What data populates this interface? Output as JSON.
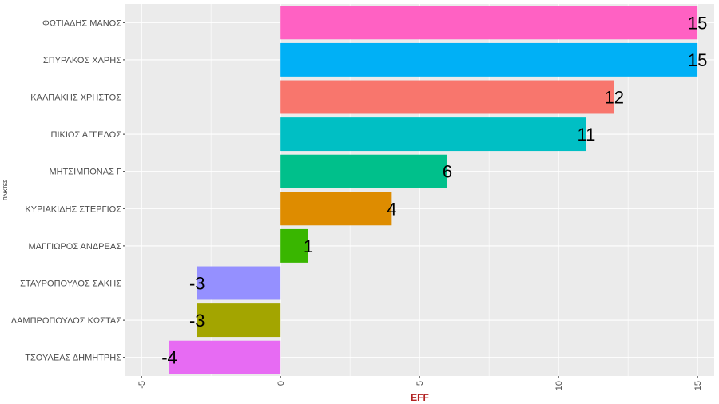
{
  "chart_data": {
    "type": "bar",
    "orientation": "horizontal",
    "categories": [
      "ΦΩΤΙΑΔΗΣ ΜΑΝΟΣ",
      "ΣΠΥΡΑΚΟΣ ΧΑΡΗΣ",
      "ΚΑΛΠΑΚΗΣ ΧΡΗΣΤΟΣ",
      "ΠΙΚΙΟΣ ΑΓΓΕΛΟΣ",
      "ΜΗΤΣΙΜΠΟΝΑΣ Γ",
      "ΚΥΡΙΑΚΙΔΗΣ ΣΤΕΡΓΙΟΣ",
      "ΜΑΓΓΙΩΡΟΣ ΑΝΔΡΕΑΣ",
      "ΣΤΑΥΡΟΠΟΥΛΟΣ ΣΑΚΗΣ",
      "ΛΑΜΠΡΟΠΟΥΛΟΣ ΚΩΣΤΑΣ",
      "ΤΣΟΥΛΕΑΣ ΔΗΜΗΤΡΗΣ"
    ],
    "values": [
      15,
      15,
      12,
      11,
      6,
      4,
      1,
      -3,
      -3,
      -4
    ],
    "colors": [
      "#FF61C3",
      "#00B0F6",
      "#F8766D",
      "#00BFC4",
      "#00C08B",
      "#DE8C00",
      "#39B600",
      "#9590FF",
      "#A3A500",
      "#E76BF3"
    ],
    "xlabel": "EFF",
    "xlabel_color": "#B22222",
    "ylabel": "ΠΑΙΚΤΕΣ",
    "xlim": [
      -5,
      15
    ],
    "xticks": [
      "-5",
      "0",
      "5",
      "10",
      "15"
    ],
    "grid": true,
    "panel_background": "#EBEBEB"
  }
}
